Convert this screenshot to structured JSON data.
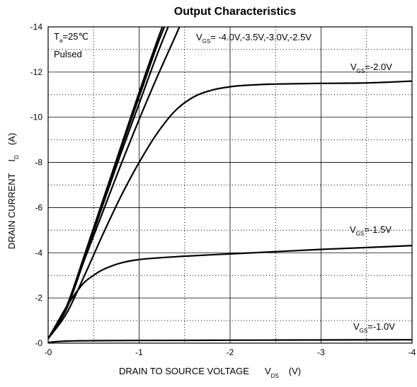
{
  "chart_data": {
    "type": "line",
    "title": "Output Characteristics",
    "xlabel": {
      "text": "DRAIN TO SOURCE VOLTAGE",
      "symbol": "V",
      "symbol_sub": "DS",
      "unit": "(V)"
    },
    "ylabel": {
      "text": "DRAIN CURRENT",
      "symbol": "I",
      "symbol_sub": "D",
      "unit": "(A)"
    },
    "xlim": [
      0,
      -4
    ],
    "ylim": [
      0,
      -14
    ],
    "x_ticks": [
      0,
      -1,
      -2,
      -3,
      -4
    ],
    "x_tick_labels": [
      "-0",
      "-1",
      "-2",
      "-3",
      "-4"
    ],
    "y_ticks": [
      0,
      -2,
      -4,
      -6,
      -8,
      -10,
      -12,
      -14
    ],
    "y_tick_labels": [
      "-0",
      "-2",
      "-4",
      "-6",
      "-8",
      "-10",
      "-12",
      "-14"
    ],
    "grid": {
      "major": "solid",
      "minor": "dotted"
    },
    "conditions": {
      "ta_symbol": "T",
      "ta_sub": "a",
      "ta_value": "=25℃",
      "mode": "Pulsed"
    },
    "series": [
      {
        "name": "-4.0V",
        "x": [
          0,
          -0.2,
          -0.4,
          -0.6,
          -0.8,
          -1.0,
          -1.2,
          -1.35
        ],
        "y": [
          -0.2,
          -1.6,
          -3.9,
          -6.3,
          -8.7,
          -11.1,
          -13.4,
          -15.0
        ]
      },
      {
        "name": "-3.5V",
        "x": [
          0,
          -0.2,
          -0.4,
          -0.6,
          -0.8,
          -1.0,
          -1.2,
          -1.38
        ],
        "y": [
          -0.2,
          -1.6,
          -3.9,
          -6.3,
          -8.6,
          -10.9,
          -13.2,
          -15.0
        ]
      },
      {
        "name": "-3.0V",
        "x": [
          0,
          -0.2,
          -0.4,
          -0.6,
          -0.8,
          -1.0,
          -1.2,
          -1.4
        ],
        "y": [
          -0.2,
          -1.5,
          -3.8,
          -6.1,
          -8.4,
          -10.6,
          -12.8,
          -14.8
        ]
      },
      {
        "name": "-2.5V",
        "x": [
          0,
          -0.2,
          -0.4,
          -0.6,
          -0.8,
          -1.0,
          -1.2,
          -1.4,
          -1.55
        ],
        "y": [
          -0.2,
          -1.5,
          -3.7,
          -5.8,
          -7.9,
          -9.9,
          -11.8,
          -13.6,
          -15.0
        ]
      },
      {
        "name": "-2.0V",
        "x": [
          0,
          -0.2,
          -0.4,
          -0.6,
          -0.8,
          -1.0,
          -1.2,
          -1.4,
          -1.6,
          -1.8,
          -2.0,
          -2.2,
          -2.5,
          -3.0,
          -3.5,
          -4.0
        ],
        "y": [
          -0.2,
          -1.3,
          -3.0,
          -4.8,
          -6.5,
          -8.0,
          -9.3,
          -10.3,
          -10.9,
          -11.2,
          -11.35,
          -11.42,
          -11.47,
          -11.5,
          -11.52,
          -11.6
        ]
      },
      {
        "name": "-1.5V",
        "x": [
          0,
          -0.1,
          -0.2,
          -0.3,
          -0.4,
          -0.5,
          -0.6,
          -0.8,
          -1.0,
          -1.2,
          -1.5,
          -2.0,
          -2.5,
          -3.0,
          -3.5,
          -4.0
        ],
        "y": [
          -0.2,
          -0.9,
          -1.6,
          -2.2,
          -2.7,
          -3.0,
          -3.25,
          -3.55,
          -3.7,
          -3.77,
          -3.85,
          -3.95,
          -4.05,
          -4.15,
          -4.23,
          -4.32
        ]
      },
      {
        "name": "-1.0V",
        "x": [
          0,
          -0.05,
          -0.1,
          -0.2,
          -0.3,
          -0.5,
          -1.0,
          -2.0,
          -3.0,
          -4.0
        ],
        "y": [
          -0.02,
          -0.05,
          -0.07,
          -0.09,
          -0.1,
          -0.11,
          -0.12,
          -0.13,
          -0.14,
          -0.15
        ]
      }
    ],
    "annotations": [
      {
        "prefix": "V",
        "sub": "GS",
        "text": "= -4.0V,-3.5V,-3.0V,-2.5V"
      },
      {
        "prefix": "V",
        "sub": "GS",
        "text": "=-2.0V"
      },
      {
        "prefix": "V",
        "sub": "GS",
        "text": "=-1.5V"
      },
      {
        "prefix": "V",
        "sub": "GS",
        "text": "=-1.0V"
      }
    ]
  }
}
